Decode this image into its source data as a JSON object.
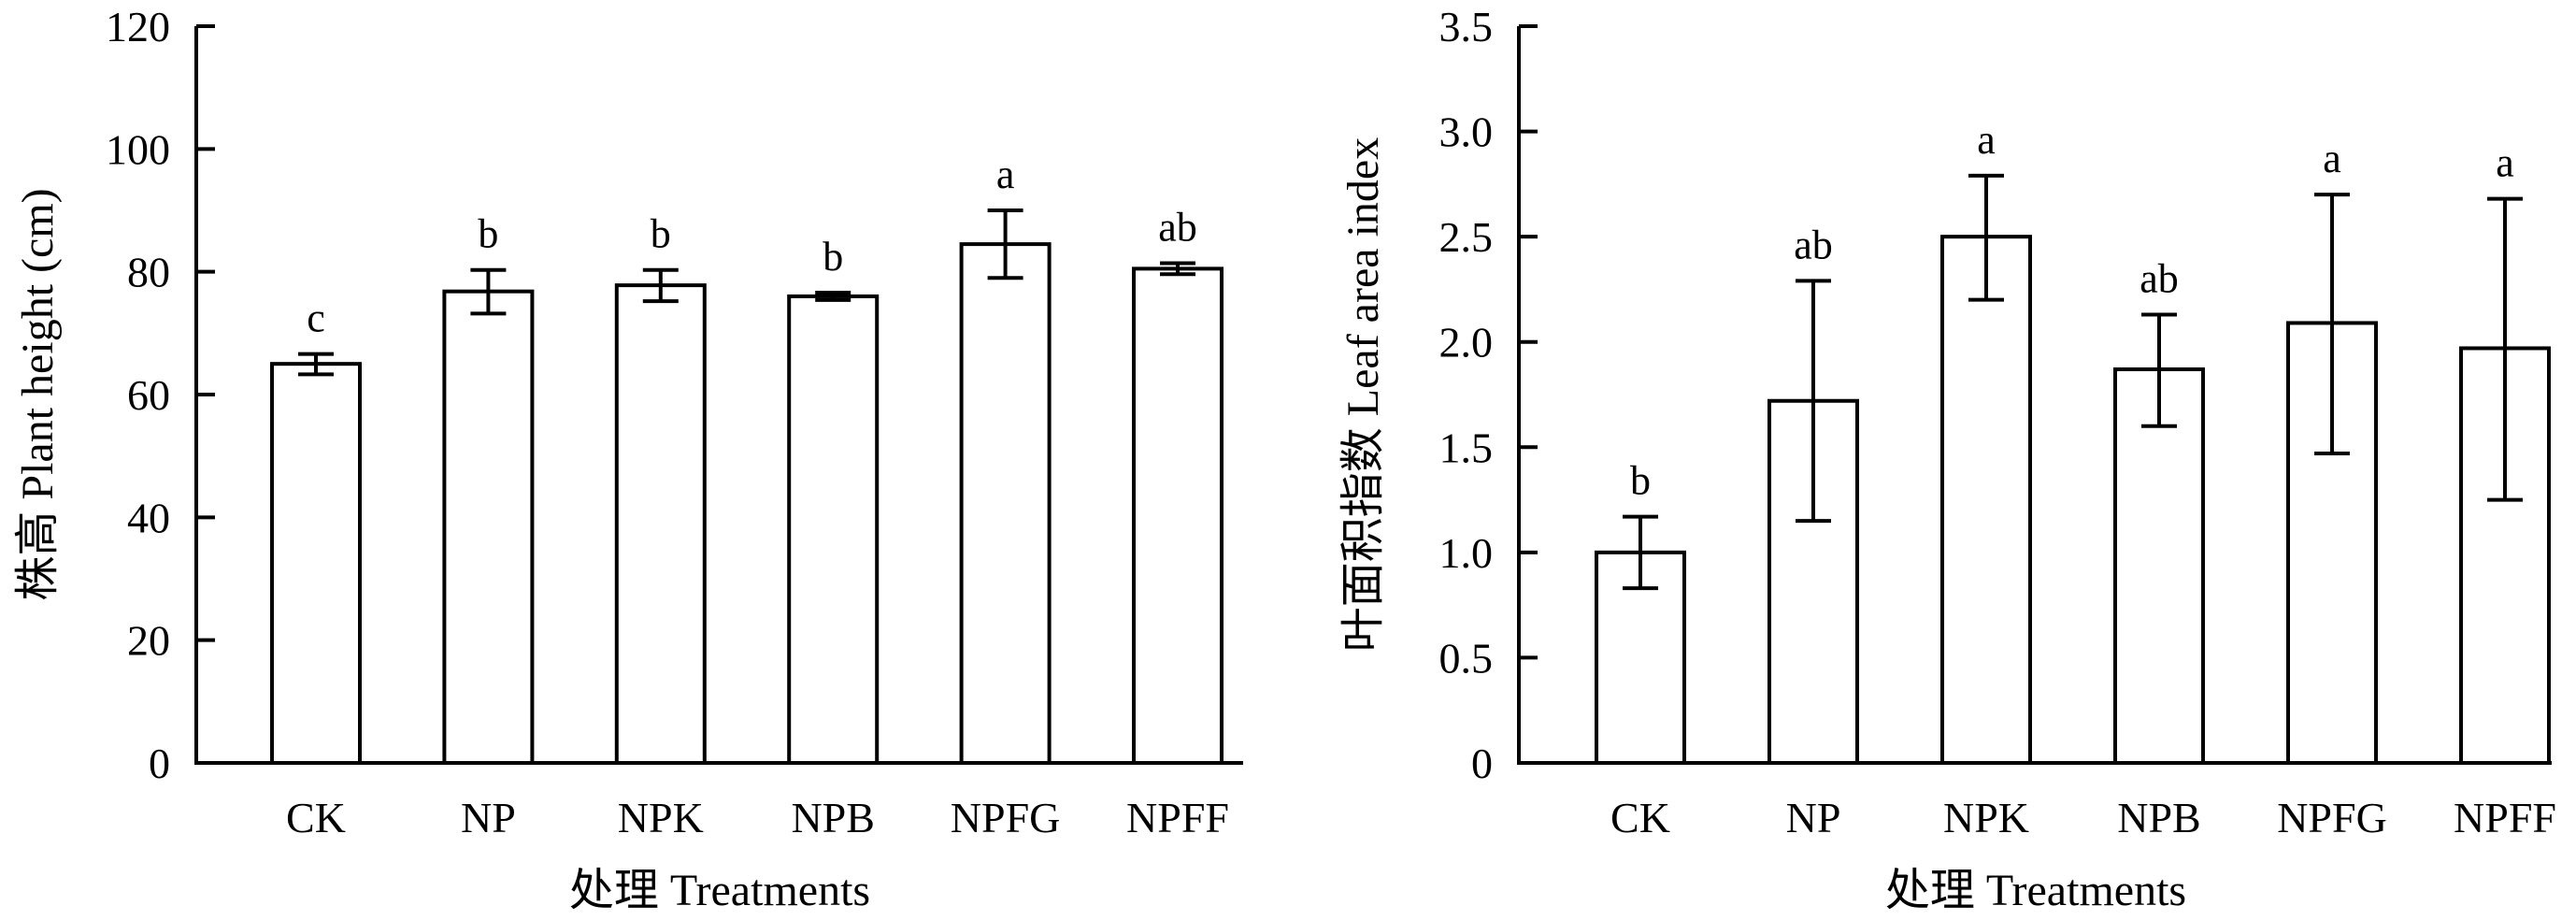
{
  "chart_data": [
    {
      "type": "bar",
      "categories": [
        "CK",
        "NP",
        "NPK",
        "NPB",
        "NPFG",
        "NPFF"
      ],
      "values": [
        65,
        76.8,
        77.8,
        76,
        84.5,
        80.5
      ],
      "error_low": [
        63.3,
        73.2,
        75.2,
        75.4,
        79.0,
        79.6
      ],
      "error_high": [
        66.6,
        80.3,
        80.3,
        76.6,
        90.0,
        81.4
      ],
      "significance": [
        "c",
        "b",
        "b",
        "b",
        "a",
        "ab"
      ],
      "ylabel": "株高 Plant height (cm)",
      "xlabel": "处理 Treatments",
      "yticks": [
        "0",
        "20",
        "40",
        "60",
        "80",
        "100",
        "120"
      ],
      "ylim": [
        0,
        120
      ],
      "grid": false
    },
    {
      "type": "bar",
      "categories": [
        "CK",
        "NP",
        "NPK",
        "NPB",
        "NPFG",
        "NPFF"
      ],
      "values": [
        1.0,
        1.72,
        2.5,
        1.87,
        2.09,
        1.97
      ],
      "error_low": [
        0.83,
        1.15,
        2.2,
        1.6,
        1.47,
        1.25
      ],
      "error_high": [
        1.17,
        2.29,
        2.79,
        2.13,
        2.7,
        2.68
      ],
      "significance": [
        "b",
        "ab",
        "a",
        "ab",
        "a",
        "a"
      ],
      "ylabel": "叶面积指数 Leaf area index",
      "xlabel": "处理 Treatments",
      "yticks": [
        "0",
        "0.5",
        "1.0",
        "1.5",
        "2.0",
        "2.5",
        "3.0",
        "3.5"
      ],
      "ylim": [
        0,
        3.5
      ],
      "grid": false
    }
  ]
}
